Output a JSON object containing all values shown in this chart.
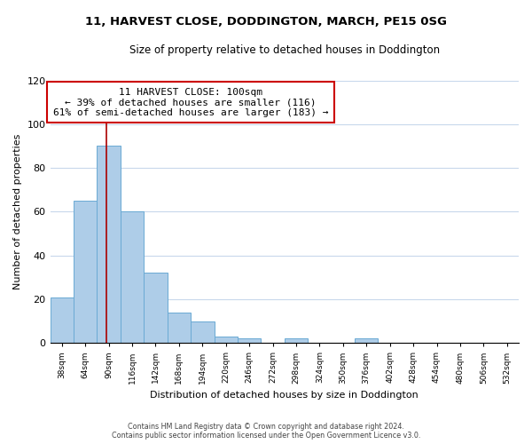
{
  "title": "11, HARVEST CLOSE, DODDINGTON, MARCH, PE15 0SG",
  "subtitle": "Size of property relative to detached houses in Doddington",
  "xlabel": "Distribution of detached houses by size in Doddington",
  "ylabel": "Number of detached properties",
  "bar_edges": [
    38,
    64,
    90,
    116,
    142,
    168,
    194,
    220,
    246,
    272,
    298,
    324,
    350,
    376,
    402,
    428,
    454,
    480,
    506,
    532,
    558
  ],
  "bar_heights": [
    21,
    65,
    90,
    60,
    32,
    14,
    10,
    3,
    2,
    0,
    2,
    0,
    0,
    2,
    0,
    0,
    0,
    0,
    0,
    0
  ],
  "bar_color": "#aecde8",
  "bar_edge_color": "#6aaad4",
  "vline_x": 100,
  "vline_color": "#aa0000",
  "annotation_box_title": "11 HARVEST CLOSE: 100sqm",
  "annotation_line1": "← 39% of detached houses are smaller (116)",
  "annotation_line2": "61% of semi-detached houses are larger (183) →",
  "annotation_box_color": "#cc0000",
  "ylim": [
    0,
    120
  ],
  "yticks": [
    0,
    20,
    40,
    60,
    80,
    100,
    120
  ],
  "footnote1": "Contains HM Land Registry data © Crown copyright and database right 2024.",
  "footnote2": "Contains public sector information licensed under the Open Government Licence v3.0.",
  "background_color": "#ffffff",
  "grid_color": "#c8d8ec"
}
